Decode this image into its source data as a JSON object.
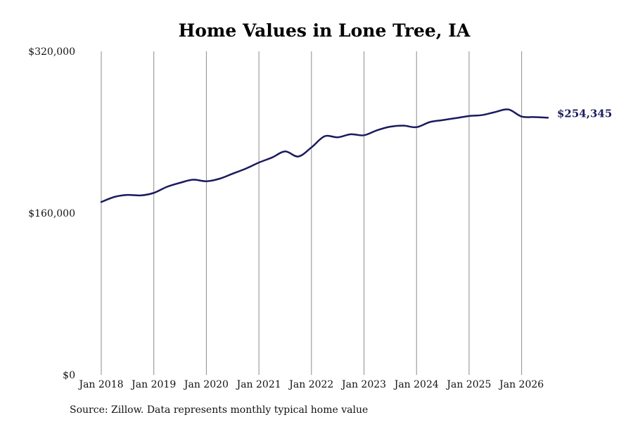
{
  "chart_data": {
    "type": "line",
    "title": "Home Values in Lone Tree, IA",
    "xlabel": "",
    "ylabel": "",
    "ylim": [
      0,
      320000
    ],
    "y_ticks": [
      {
        "value": 0,
        "label": "$0"
      },
      {
        "value": 160000,
        "label": "$160,000"
      },
      {
        "value": 320000,
        "label": "$320,000"
      }
    ],
    "x_range": [
      2018.0,
      2026.5
    ],
    "x_ticks": [
      {
        "value": 2018,
        "label": "Jan 2018"
      },
      {
        "value": 2019,
        "label": "Jan 2019"
      },
      {
        "value": 2020,
        "label": "Jan 2020"
      },
      {
        "value": 2021,
        "label": "Jan 2021"
      },
      {
        "value": 2022,
        "label": "Jan 2022"
      },
      {
        "value": 2023,
        "label": "Jan 2023"
      },
      {
        "value": 2024,
        "label": "Jan 2024"
      },
      {
        "value": 2025,
        "label": "Jan 2025"
      },
      {
        "value": 2026,
        "label": "Jan 2026"
      }
    ],
    "vertical_gridlines": true,
    "horizontal_gridlines": false,
    "line_color": "#1a1a5e",
    "series": [
      {
        "x": [
          2018.0,
          2018.25,
          2018.5,
          2018.75,
          2019.0,
          2019.25,
          2019.5,
          2019.75,
          2020.0,
          2020.25,
          2020.5,
          2020.75,
          2021.0,
          2021.25,
          2021.5,
          2021.75,
          2022.0,
          2022.25,
          2022.5,
          2022.75,
          2023.0,
          2023.25,
          2023.5,
          2023.75,
          2024.0,
          2024.25,
          2024.5,
          2024.75,
          2025.0,
          2025.25,
          2025.5,
          2025.75,
          2026.0,
          2026.25,
          2026.5
        ],
        "y": [
          171000,
          176000,
          178000,
          177500,
          180000,
          186000,
          190000,
          193000,
          191500,
          194000,
          199000,
          204000,
          210000,
          215000,
          221000,
          216000,
          225000,
          236000,
          235000,
          238000,
          237000,
          242000,
          245500,
          246500,
          245000,
          250000,
          252000,
          254000,
          256000,
          257000,
          260000,
          262500,
          255500,
          255000,
          254345
        ]
      }
    ],
    "end_label": "$254,345",
    "end_label_color": "#1a1a5e",
    "source": "Source: Zillow. Data represents monthly typical home value"
  }
}
